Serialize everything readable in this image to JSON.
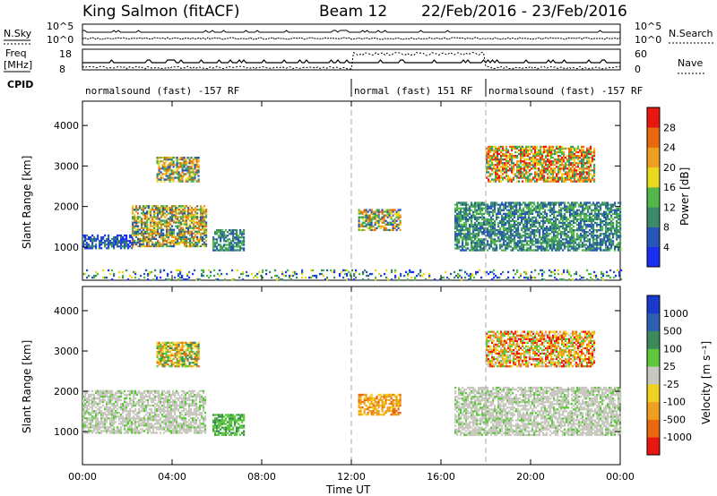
{
  "header": {
    "station": "King Salmon (fitACF)",
    "beam": "Beam 12",
    "dates": "22/Feb/2016 - 23/Feb/2016"
  },
  "strip": {
    "nsky_label": "N.Sky",
    "nsearch_label": "N.Search",
    "nsky_ticks": [
      "10^5",
      "10^0"
    ],
    "nsearch_ticks": [
      "10^5",
      "10^0"
    ],
    "freq_label": "Freq",
    "freq_unit": "[MHz]",
    "freq_ticks": [
      "18",
      "8"
    ],
    "nave_label": "Nave",
    "nave_ticks": [
      "60",
      "0"
    ],
    "cpid_label": "CPID",
    "cpid_segments": [
      {
        "label": "normalsound (fast) -157 RF",
        "start": 0,
        "end": 12
      },
      {
        "label": "normal (fast) 151 RF",
        "start": 12,
        "end": 18
      },
      {
        "label": "normalsound (fast) -157 RF",
        "start": 18,
        "end": 24
      }
    ]
  },
  "axes": {
    "ylabel": "Slant Range [km]",
    "xlabel": "Time UT",
    "x_ticks": [
      "00:00",
      "04:00",
      "08:00",
      "12:00",
      "16:00",
      "20:00",
      "00:00"
    ],
    "y_ticks": [
      "1000",
      "2000",
      "3000",
      "4000"
    ]
  },
  "power_scale": {
    "label": "Power [dB]",
    "ticks": [
      "4",
      "8",
      "12",
      "16",
      "20",
      "24",
      "28"
    ],
    "colors": [
      "#1a2ff0",
      "#2856b8",
      "#3b8a6a",
      "#52b84a",
      "#e8d820",
      "#f0a020",
      "#e86a10",
      "#e81810"
    ]
  },
  "velocity_scale": {
    "label": "Velocity [m s⁻¹]",
    "ticks": [
      "1000",
      "500",
      "100",
      "25",
      "-25",
      "-100",
      "-500",
      "-1000"
    ],
    "colors": [
      "#1a3acc",
      "#2f5fb0",
      "#3c8a5a",
      "#5cc83a",
      "#c8c8c0",
      "#f0d020",
      "#f0a020",
      "#e86a10",
      "#e81810"
    ]
  },
  "chart_data": [
    {
      "type": "heatmap",
      "title": "Power",
      "x": "time (hours UT, 0-24)",
      "y": "slant range (km)",
      "ylim": [
        180,
        4600
      ],
      "xlim": [
        0,
        24
      ],
      "regions": [
        {
          "t0": 0.0,
          "t1": 2.2,
          "r0": 950,
          "r1": 1300,
          "level": "low-mid"
        },
        {
          "t0": 2.2,
          "t1": 5.5,
          "r0": 1000,
          "r1": 2000,
          "level": "mid-high"
        },
        {
          "t0": 3.3,
          "t1": 5.2,
          "r0": 2600,
          "r1": 3200,
          "level": "mid-high"
        },
        {
          "t0": 5.8,
          "t1": 7.2,
          "r0": 900,
          "r1": 1400,
          "level": "mid"
        },
        {
          "t0": 12.3,
          "t1": 14.2,
          "r0": 1400,
          "r1": 1900,
          "level": "mid-high"
        },
        {
          "t0": 16.6,
          "t1": 24.0,
          "r0": 900,
          "r1": 2100,
          "level": "mid"
        },
        {
          "t0": 18.0,
          "t1": 22.8,
          "r0": 2600,
          "r1": 3500,
          "level": "high"
        },
        {
          "t0": 0.0,
          "t1": 24.0,
          "r0": 180,
          "r1": 420,
          "level": "ground-scatter"
        }
      ]
    },
    {
      "type": "heatmap",
      "title": "Velocity",
      "x": "time (hours UT, 0-24)",
      "y": "slant range (km)",
      "ylim": [
        180,
        4600
      ],
      "xlim": [
        0,
        24
      ],
      "regions": [
        {
          "t0": 0.0,
          "t1": 5.5,
          "r0": 950,
          "r1": 2000,
          "level": "near-zero"
        },
        {
          "t0": 3.3,
          "t1": 5.2,
          "r0": 2600,
          "r1": 3200,
          "level": "mixed"
        },
        {
          "t0": 5.8,
          "t1": 7.2,
          "r0": 900,
          "r1": 1400,
          "level": "positive-100"
        },
        {
          "t0": 12.3,
          "t1": 14.2,
          "r0": 1400,
          "r1": 1900,
          "level": "negative-500"
        },
        {
          "t0": 16.6,
          "t1": 24.0,
          "r0": 900,
          "r1": 2100,
          "level": "near-zero"
        },
        {
          "t0": 18.0,
          "t1": 22.8,
          "r0": 2600,
          "r1": 3500,
          "level": "mixed-negative"
        }
      ]
    }
  ]
}
